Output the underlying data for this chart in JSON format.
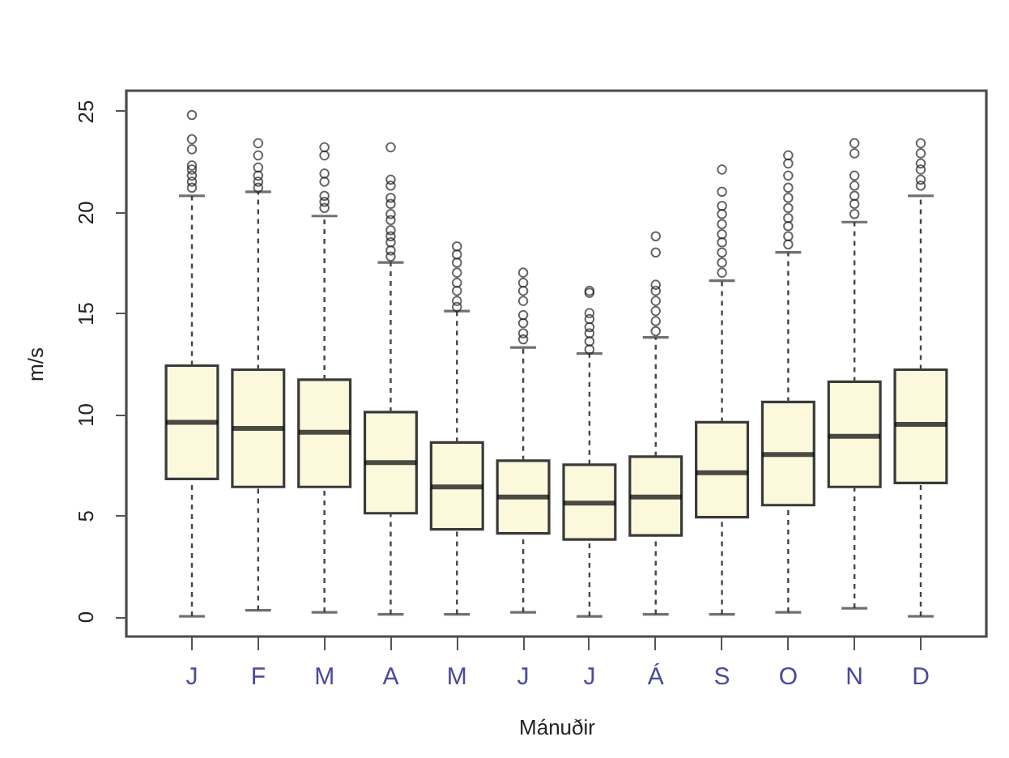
{
  "chart_data": {
    "type": "box",
    "xlabel": "Mánuðir",
    "ylabel": "m/s",
    "categories": [
      "J",
      "F",
      "M",
      "A",
      "M",
      "J",
      "J",
      "Á",
      "S",
      "O",
      "N",
      "D"
    ],
    "color": "#fbf8dc",
    "line_style": "dashed",
    "marker": "circle",
    "grid": false,
    "ylim": [
      -1,
      26
    ],
    "yticks": [
      0,
      5,
      10,
      15,
      20,
      25
    ],
    "boxes": [
      {
        "low": 0,
        "q1": 6.8,
        "median": 9.6,
        "q3": 12.4,
        "high": 20.8,
        "outliers": [
          21.2,
          21.5,
          21.8,
          22.1,
          22.3,
          23.1,
          23.6,
          24.8
        ]
      },
      {
        "low": 0.3,
        "q1": 6.4,
        "median": 9.3,
        "q3": 12.2,
        "high": 21.0,
        "outliers": [
          21.2,
          21.5,
          21.8,
          22.2,
          22.8,
          23.4
        ]
      },
      {
        "low": 0.2,
        "q1": 6.4,
        "median": 9.1,
        "q3": 11.7,
        "high": 19.8,
        "outliers": [
          20.2,
          20.5,
          20.8,
          21.5,
          21.9,
          22.8,
          23.2
        ]
      },
      {
        "low": 0.1,
        "q1": 5.1,
        "median": 7.6,
        "q3": 10.1,
        "high": 17.5,
        "outliers": [
          17.8,
          18.1,
          18.5,
          18.8,
          19.1,
          19.6,
          19.9,
          20.4,
          20.7,
          21.3,
          21.6,
          23.2
        ]
      },
      {
        "low": 0.1,
        "q1": 4.3,
        "median": 6.4,
        "q3": 8.6,
        "high": 15.1,
        "outliers": [
          15.3,
          15.6,
          16.1,
          16.5,
          17.0,
          17.5,
          17.9,
          18.3
        ]
      },
      {
        "low": 0.2,
        "q1": 4.1,
        "median": 5.9,
        "q3": 7.7,
        "high": 13.3,
        "outliers": [
          13.7,
          14.0,
          14.5,
          14.9,
          15.6,
          16.1,
          16.5,
          17.0
        ]
      },
      {
        "low": 0,
        "q1": 3.8,
        "median": 5.6,
        "q3": 7.5,
        "high": 13.0,
        "outliers": [
          13.2,
          13.6,
          14.0,
          14.3,
          14.7,
          15.0,
          16.0,
          16.1
        ]
      },
      {
        "low": 0.1,
        "q1": 4.0,
        "median": 5.9,
        "q3": 7.9,
        "high": 13.8,
        "outliers": [
          14.1,
          14.6,
          15.1,
          15.6,
          16.1,
          16.4,
          18.0,
          18.8
        ]
      },
      {
        "low": 0.1,
        "q1": 4.9,
        "median": 7.1,
        "q3": 9.6,
        "high": 16.6,
        "outliers": [
          17.0,
          17.5,
          18.0,
          18.5,
          18.9,
          19.4,
          19.9,
          20.3,
          21.0,
          22.1
        ]
      },
      {
        "low": 0.2,
        "q1": 5.5,
        "median": 8.0,
        "q3": 10.6,
        "high": 18.0,
        "outliers": [
          18.4,
          18.8,
          19.3,
          19.7,
          20.2,
          20.7,
          21.2,
          21.8,
          22.4,
          22.8
        ]
      },
      {
        "low": 0.4,
        "q1": 6.4,
        "median": 8.9,
        "q3": 11.6,
        "high": 19.5,
        "outliers": [
          19.9,
          20.4,
          20.8,
          21.3,
          21.8,
          22.9,
          23.4
        ]
      },
      {
        "low": 0,
        "q1": 6.6,
        "median": 9.5,
        "q3": 12.2,
        "high": 20.8,
        "outliers": [
          21.3,
          21.6,
          22.1,
          22.4,
          22.9,
          23.4
        ]
      }
    ]
  }
}
